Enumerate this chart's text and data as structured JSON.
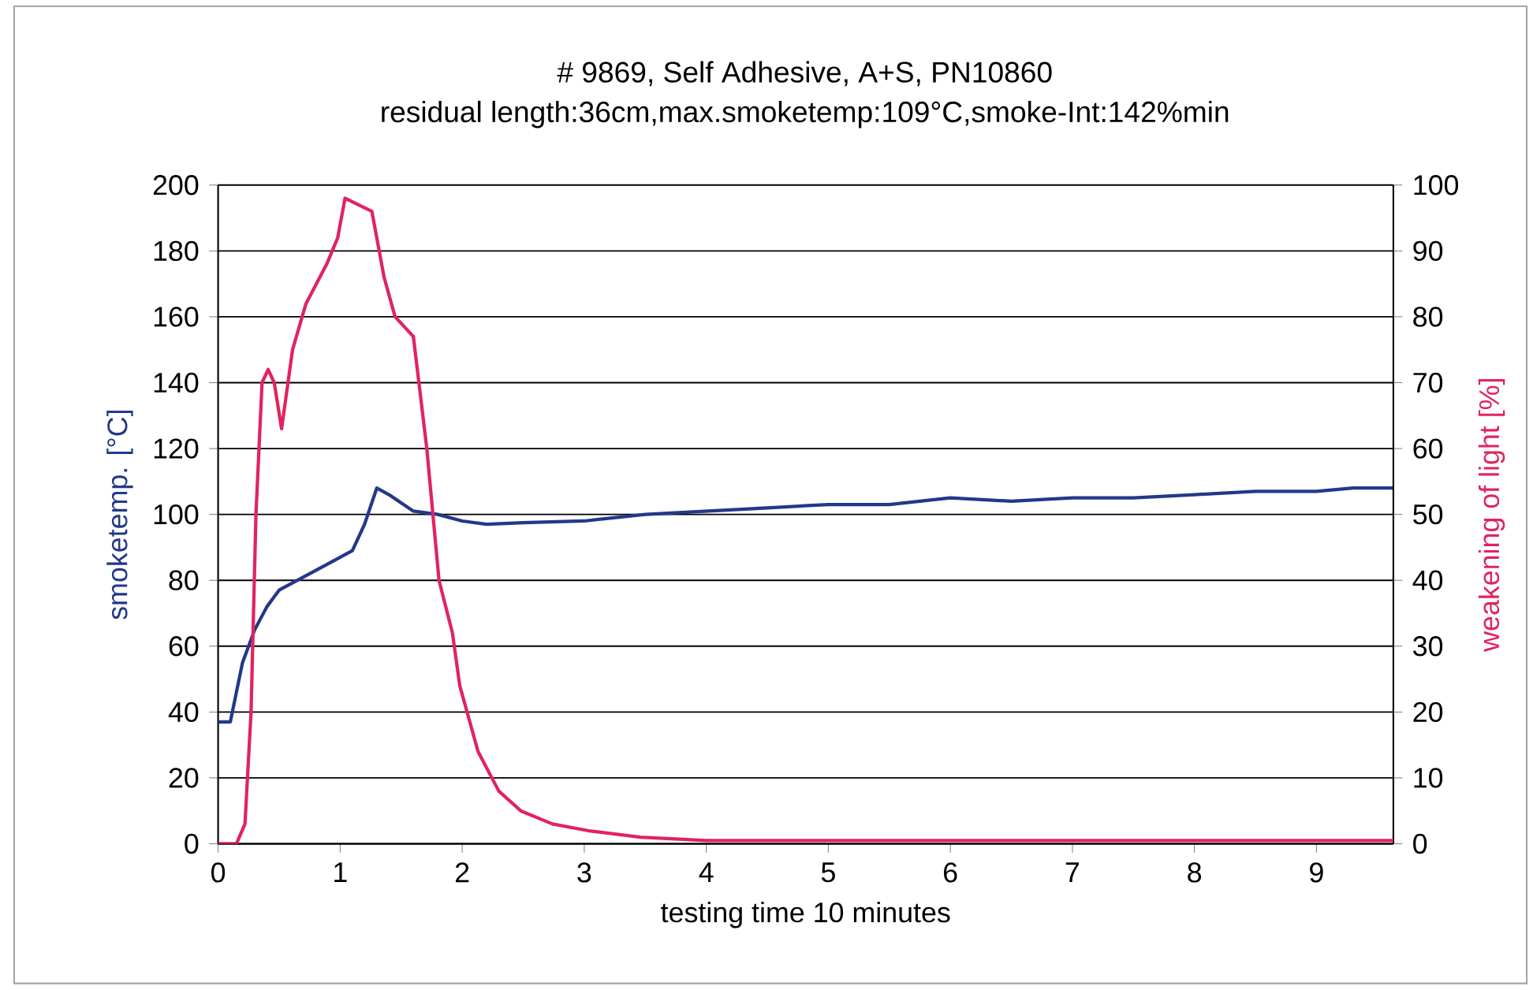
{
  "chart_data": {
    "type": "line",
    "title": "# 9869, Self Adhesive, A+S, PN10860",
    "subtitle": "residual length:36cm,max.smoketemp:109°C,smoke-Int:142%min",
    "xlabel": "testing time 10 minutes",
    "ylabel": "smoketemp. [°C]",
    "y2label": "weakening of light [%]",
    "xlim": [
      0,
      9.63
    ],
    "xticks": [
      0,
      1,
      2,
      3,
      4,
      5,
      6,
      7,
      8,
      9
    ],
    "ylim": [
      0,
      200
    ],
    "yticks": [
      0,
      20,
      40,
      60,
      80,
      100,
      120,
      140,
      160,
      180,
      200
    ],
    "y2lim": [
      0,
      100
    ],
    "y2ticks": [
      0,
      10,
      20,
      30,
      40,
      50,
      60,
      70,
      80,
      90,
      100
    ],
    "grid": "y",
    "series": [
      {
        "color": "#23388a",
        "x": [
          0,
          0.1,
          0.2,
          0.3,
          0.4,
          0.5,
          0.7,
          0.9,
          1.1,
          1.2,
          1.3,
          1.4,
          1.6,
          1.8,
          2.0,
          2.2,
          2.5,
          3.0,
          3.5,
          4.0,
          4.5,
          5.0,
          5.5,
          6.0,
          6.5,
          7.0,
          7.5,
          8.0,
          8.5,
          9.0,
          9.3,
          9.63
        ],
        "values": [
          37,
          37,
          55,
          65,
          72,
          77,
          81,
          85,
          89,
          97,
          108,
          106,
          101,
          100,
          98,
          97,
          97.5,
          98,
          100,
          101,
          102,
          103,
          103,
          105,
          104,
          105,
          105,
          106,
          107,
          107,
          108,
          108
        ]
      },
      {
        "color": "#e0245e",
        "axis": "y2",
        "x": [
          0,
          0.15,
          0.22,
          0.27,
          0.31,
          0.36,
          0.41,
          0.46,
          0.52,
          0.61,
          0.72,
          0.89,
          0.98,
          1.04,
          1.26,
          1.36,
          1.45,
          1.55,
          1.6,
          1.71,
          1.81,
          1.92,
          1.98,
          2.13,
          2.3,
          2.48,
          2.74,
          3.03,
          3.46,
          4.0,
          5.0,
          6.0,
          7.0,
          8.0,
          9.0,
          9.63
        ],
        "values": [
          0,
          0,
          3,
          20,
          50,
          70,
          72,
          70,
          63,
          75,
          82,
          88,
          92,
          98,
          96,
          86,
          80,
          78,
          77,
          60,
          40,
          32,
          24,
          14,
          8,
          5,
          3,
          2,
          1,
          0.5,
          0.5,
          0.5,
          0.5,
          0.5,
          0.5,
          0.5
        ]
      }
    ]
  }
}
